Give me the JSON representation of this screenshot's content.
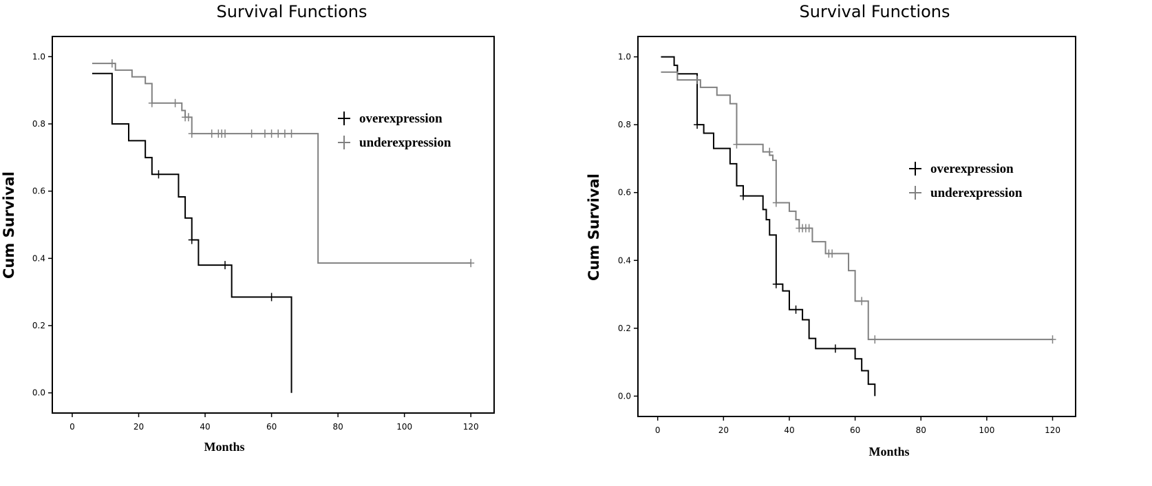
{
  "chart_data": [
    {
      "type": "line",
      "subtype": "kaplan-meier-step",
      "title": "Survival Functions",
      "xlabel": "Months",
      "ylabel": "Cum Survival",
      "xlim": [
        -6,
        127
      ],
      "ylim": [
        -0.06,
        1.06
      ],
      "xticks": [
        0,
        20,
        40,
        60,
        80,
        100,
        120
      ],
      "yticks": [
        0.0,
        0.2,
        0.4,
        0.6,
        0.8,
        1.0
      ],
      "ytick_labels": [
        "0.0",
        "0.2",
        "0.4",
        "0.6",
        "0.8",
        "1.0"
      ],
      "grid": false,
      "legend_position": "right-upper",
      "series": [
        {
          "name": "overexpression",
          "color": "#000000",
          "steps": [
            [
              6,
              0.95
            ],
            [
              12,
              0.8
            ],
            [
              17,
              0.75
            ],
            [
              22,
              0.7
            ],
            [
              24,
              0.65
            ],
            [
              32,
              0.583
            ],
            [
              34,
              0.52
            ],
            [
              36,
              0.455
            ],
            [
              38,
              0.38
            ],
            [
              48,
              0.285
            ],
            [
              66,
              0.285
            ],
            [
              66,
              0.0
            ]
          ],
          "censored": [
            [
              26,
              0.65
            ],
            [
              36,
              0.455
            ],
            [
              46,
              0.38
            ],
            [
              60,
              0.285
            ]
          ]
        },
        {
          "name": "underexpression",
          "color": "#808080",
          "steps": [
            [
              6,
              0.98
            ],
            [
              13,
              0.96
            ],
            [
              18,
              0.94
            ],
            [
              22,
              0.92
            ],
            [
              24,
              0.862
            ],
            [
              33,
              0.84
            ],
            [
              34,
              0.82
            ],
            [
              36,
              0.771
            ],
            [
              74,
              0.386
            ],
            [
              120,
              0.386
            ]
          ],
          "censored": [
            [
              12,
              0.98
            ],
            [
              24,
              0.862
            ],
            [
              31,
              0.862
            ],
            [
              34,
              0.82
            ],
            [
              35,
              0.82
            ],
            [
              36,
              0.771
            ],
            [
              42,
              0.771
            ],
            [
              44,
              0.771
            ],
            [
              45,
              0.771
            ],
            [
              46,
              0.771
            ],
            [
              54,
              0.771
            ],
            [
              58,
              0.771
            ],
            [
              60,
              0.771
            ],
            [
              62,
              0.771
            ],
            [
              64,
              0.771
            ],
            [
              66,
              0.771
            ],
            [
              120,
              0.386
            ]
          ]
        }
      ]
    },
    {
      "type": "line",
      "subtype": "kaplan-meier-step",
      "title": "Survival Functions",
      "xlabel": "Months",
      "ylabel": "Cum Survival",
      "xlim": [
        -6,
        127
      ],
      "ylim": [
        -0.06,
        1.06
      ],
      "xticks": [
        0,
        20,
        40,
        60,
        80,
        100,
        120
      ],
      "yticks": [
        0.0,
        0.2,
        0.4,
        0.6,
        0.8,
        1.0
      ],
      "ytick_labels": [
        "0.0",
        "0.2",
        "0.4",
        "0.6",
        "0.8",
        "1.0"
      ],
      "grid": false,
      "legend_position": "right-middle",
      "series": [
        {
          "name": "overexpression",
          "color": "#000000",
          "steps": [
            [
              1,
              1.0
            ],
            [
              5,
              0.975
            ],
            [
              6,
              0.95
            ],
            [
              12,
              0.8
            ],
            [
              14,
              0.775
            ],
            [
              17,
              0.73
            ],
            [
              22,
              0.685
            ],
            [
              24,
              0.62
            ],
            [
              26,
              0.59
            ],
            [
              32,
              0.55
            ],
            [
              33,
              0.52
            ],
            [
              34,
              0.475
            ],
            [
              36,
              0.33
            ],
            [
              38,
              0.31
            ],
            [
              40,
              0.255
            ],
            [
              44,
              0.225
            ],
            [
              46,
              0.17
            ],
            [
              48,
              0.14
            ],
            [
              60,
              0.11
            ],
            [
              62,
              0.075
            ],
            [
              64,
              0.035
            ],
            [
              66,
              0.0
            ]
          ],
          "censored": [
            [
              12,
              0.8
            ],
            [
              26,
              0.59
            ],
            [
              36,
              0.33
            ],
            [
              42,
              0.255
            ],
            [
              54,
              0.14
            ]
          ]
        },
        {
          "name": "underexpression",
          "color": "#808080",
          "steps": [
            [
              1,
              0.955
            ],
            [
              6,
              0.932
            ],
            [
              13,
              0.91
            ],
            [
              18,
              0.887
            ],
            [
              22,
              0.862
            ],
            [
              24,
              0.742
            ],
            [
              32,
              0.72
            ],
            [
              34,
              0.71
            ],
            [
              35,
              0.695
            ],
            [
              36,
              0.57
            ],
            [
              40,
              0.545
            ],
            [
              42,
              0.52
            ],
            [
              43,
              0.495
            ],
            [
              47,
              0.455
            ],
            [
              51,
              0.42
            ],
            [
              58,
              0.37
            ],
            [
              60,
              0.28
            ],
            [
              64,
              0.167
            ],
            [
              120,
              0.167
            ]
          ],
          "censored": [
            [
              12,
              0.932
            ],
            [
              24,
              0.742
            ],
            [
              34,
              0.72
            ],
            [
              36,
              0.57
            ],
            [
              43,
              0.495
            ],
            [
              44,
              0.495
            ],
            [
              45,
              0.495
            ],
            [
              46,
              0.495
            ],
            [
              52,
              0.42
            ],
            [
              53,
              0.42
            ],
            [
              62,
              0.28
            ],
            [
              66,
              0.167
            ],
            [
              120,
              0.167
            ]
          ]
        }
      ]
    }
  ]
}
